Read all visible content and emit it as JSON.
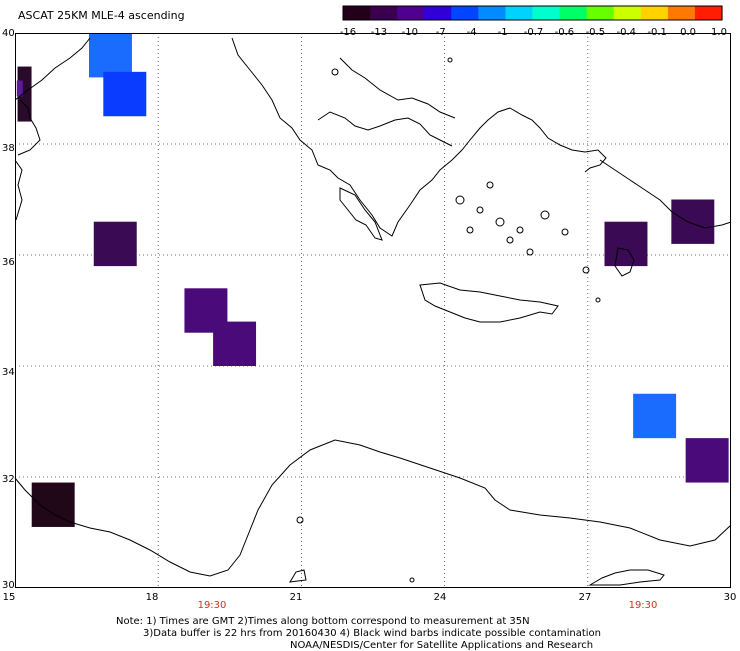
{
  "title": "ASCAT 25KM MLE-4 ascending",
  "colorbar": {
    "ticks": [
      "-16",
      "-13",
      "-10",
      "-7",
      "-4",
      "-1",
      "-0.7",
      "-0.6",
      "-0.5",
      "-0.4",
      "-0.1",
      "0.0",
      "1.0"
    ],
    "colors": [
      "#22001a",
      "#3a004f",
      "#4f0090",
      "#3000d8",
      "#0046ff",
      "#008cff",
      "#00d2ff",
      "#00ffcc",
      "#00ff66",
      "#66ff00",
      "#ccff00",
      "#ffd200",
      "#ff7800",
      "#ff1e00"
    ]
  },
  "latitude_labels": [
    "40",
    "38",
    "36",
    "34",
    "32",
    "30"
  ],
  "longitude_labels": [
    "15",
    "18",
    "21",
    "24",
    "27",
    "30"
  ],
  "time_labels": [
    "19:30",
    "19:30"
  ],
  "notes": [
    "Note: 1) Times are GMT 2)Times along bottom correspond to measurement at 35N",
    "3)Data buffer is 22 hrs from 20160430 4) Black wind barbs indicate possible contamination",
    "NOAA/NESDIS/Center for Satellite Applications and Research"
  ],
  "data_cells": [
    {
      "lon": 15.2,
      "lat": 38.9,
      "value": "-16",
      "color": "#2a0a2a"
    },
    {
      "lon": 15.1,
      "lat": 39.0,
      "value": "-13",
      "color": "#5a1a9a"
    },
    {
      "lon": 17.0,
      "lat": 39.7,
      "value": "-4",
      "color": "#1a6cff"
    },
    {
      "lon": 17.3,
      "lat": 38.9,
      "value": "-7",
      "color": "#0a3cff"
    },
    {
      "lon": 17.1,
      "lat": 36.2,
      "value": "-13",
      "color": "#3a0a55"
    },
    {
      "lon": 19.0,
      "lat": 35.0,
      "value": "-13",
      "color": "#4b0a7a"
    },
    {
      "lon": 19.6,
      "lat": 34.4,
      "value": "-13",
      "color": "#4b0a7a"
    },
    {
      "lon": 15.8,
      "lat": 31.5,
      "value": "-16",
      "color": "#200818"
    },
    {
      "lon": 27.8,
      "lat": 36.2,
      "value": "-13",
      "color": "#3a0a55"
    },
    {
      "lon": 29.2,
      "lat": 36.6,
      "value": "-13",
      "color": "#3a0a55"
    },
    {
      "lon": 28.4,
      "lat": 33.1,
      "value": "-4",
      "color": "#1a6cff"
    },
    {
      "lon": 29.5,
      "lat": 32.3,
      "value": "-13",
      "color": "#4b0a7a"
    }
  ]
}
